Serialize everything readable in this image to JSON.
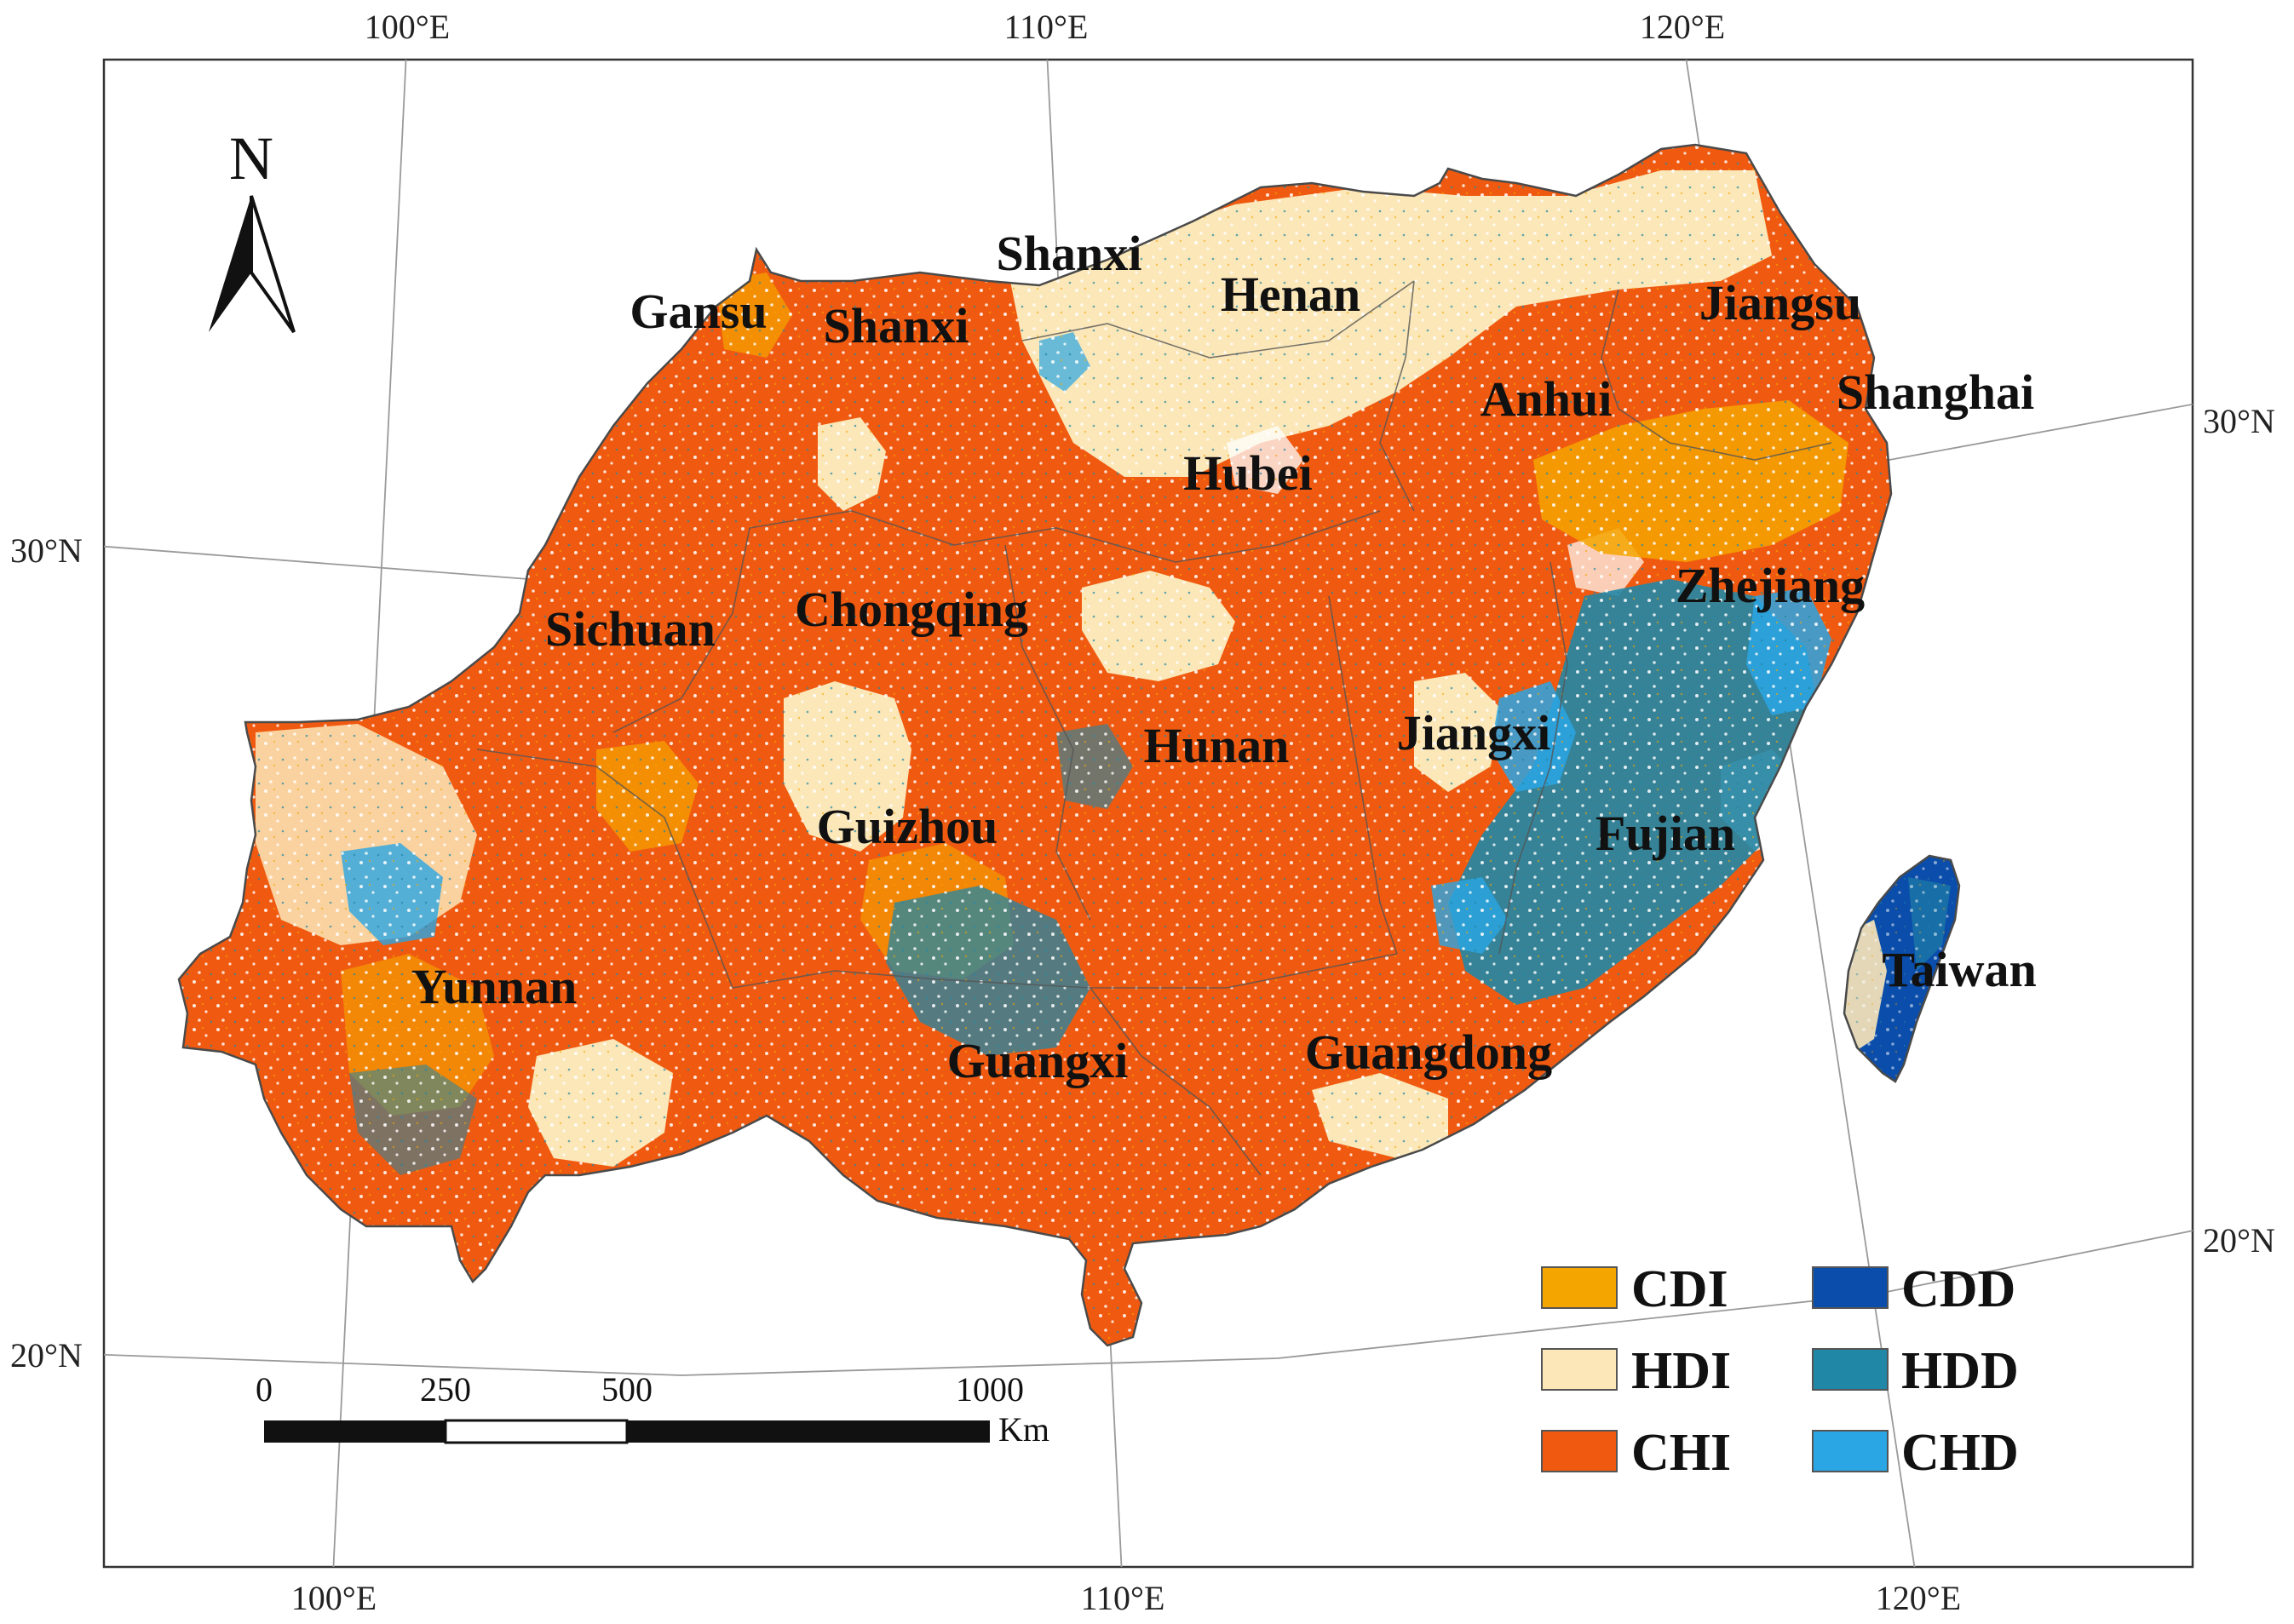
{
  "map": {
    "north_label": "N",
    "graticule": {
      "top_labels": [
        "100°E",
        "110°E",
        "120°E"
      ],
      "bottom_labels": [
        "100°E",
        "110°E",
        "120°E"
      ],
      "left_labels": [
        "30°N",
        "20°N"
      ],
      "right_labels": [
        "30°N",
        "20°N"
      ]
    },
    "provinces": [
      "Shanxi",
      "Gansu",
      "Shanxi",
      "Henan",
      "Jiangsu",
      "Shanghai",
      "Anhui",
      "Hubei",
      "Sichuan",
      "Chongqing",
      "Zhejiang",
      "Jiangxi",
      "Hunan",
      "Guizhou",
      "Fujian",
      "Yunnan",
      "Taiwan",
      "Guangxi",
      "Guangdong"
    ],
    "legend": [
      {
        "label": "CDI",
        "color": "#F5A500"
      },
      {
        "label": "CDD",
        "color": "#0A4DAA"
      },
      {
        "label": "HDI",
        "color": "#FBE7B8"
      },
      {
        "label": "HDD",
        "color": "#2187A6"
      },
      {
        "label": "CHI",
        "color": "#F05A10"
      },
      {
        "label": "CHD",
        "color": "#2AA6E4"
      }
    ],
    "scale_bar": {
      "ticks": [
        "0",
        "250",
        "500",
        "1000"
      ],
      "unit": "Km"
    }
  }
}
